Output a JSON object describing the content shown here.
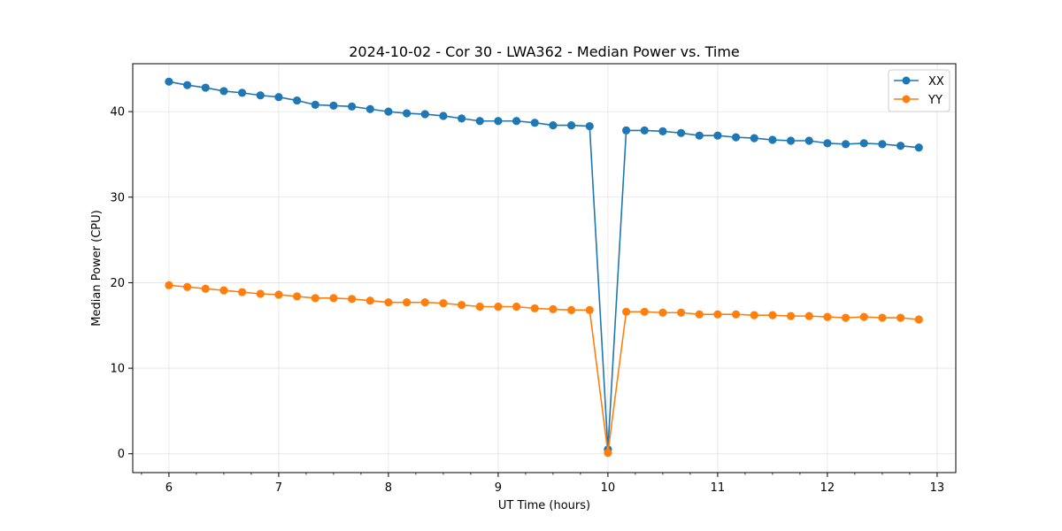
{
  "chart_data": {
    "type": "line",
    "title": "2024-10-02 - Cor 30 - LWA362 - Median Power vs. Time",
    "xlabel": "UT Time (hours)",
    "ylabel": "Median Power (CPU)",
    "xlim": [
      5.67,
      13.17
    ],
    "ylim": [
      -2.2,
      45.6
    ],
    "xticks": [
      6,
      7,
      8,
      9,
      10,
      11,
      12,
      13
    ],
    "yticks": [
      0,
      10,
      20,
      30,
      40
    ],
    "grid": true,
    "legend_position": "top-right",
    "x": [
      6.0,
      6.1667,
      6.3333,
      6.5,
      6.6667,
      6.8333,
      7.0,
      7.1667,
      7.3333,
      7.5,
      7.6667,
      7.8333,
      8.0,
      8.1667,
      8.3333,
      8.5,
      8.6667,
      8.8333,
      9.0,
      9.1667,
      9.3333,
      9.5,
      9.6667,
      9.8333,
      10.0,
      10.1667,
      10.3333,
      10.5,
      10.6667,
      10.8333,
      11.0,
      11.1667,
      11.3333,
      11.5,
      11.6667,
      11.8333,
      12.0,
      12.1667,
      12.3333,
      12.5,
      12.6667,
      12.8333
    ],
    "series": [
      {
        "name": "XX",
        "color": "#1f77b4",
        "values": [
          43.5,
          43.1,
          42.8,
          42.4,
          42.2,
          41.9,
          41.7,
          41.3,
          40.8,
          40.7,
          40.6,
          40.3,
          40.0,
          39.8,
          39.7,
          39.5,
          39.2,
          38.9,
          38.9,
          38.9,
          38.7,
          38.4,
          38.4,
          38.3,
          0.5,
          37.8,
          37.8,
          37.7,
          37.5,
          37.2,
          37.2,
          37.0,
          36.9,
          36.7,
          36.6,
          36.6,
          36.3,
          36.2,
          36.3,
          36.2,
          36.0,
          35.8
        ]
      },
      {
        "name": "YY",
        "color": "#ff7f0e",
        "values": [
          19.7,
          19.5,
          19.3,
          19.1,
          18.9,
          18.7,
          18.6,
          18.4,
          18.2,
          18.2,
          18.1,
          17.9,
          17.7,
          17.7,
          17.7,
          17.6,
          17.4,
          17.2,
          17.2,
          17.2,
          17.0,
          16.9,
          16.8,
          16.8,
          0.1,
          16.6,
          16.6,
          16.5,
          16.5,
          16.3,
          16.3,
          16.3,
          16.2,
          16.2,
          16.1,
          16.1,
          16.0,
          15.9,
          16.0,
          15.9,
          15.9,
          15.7
        ]
      }
    ]
  }
}
